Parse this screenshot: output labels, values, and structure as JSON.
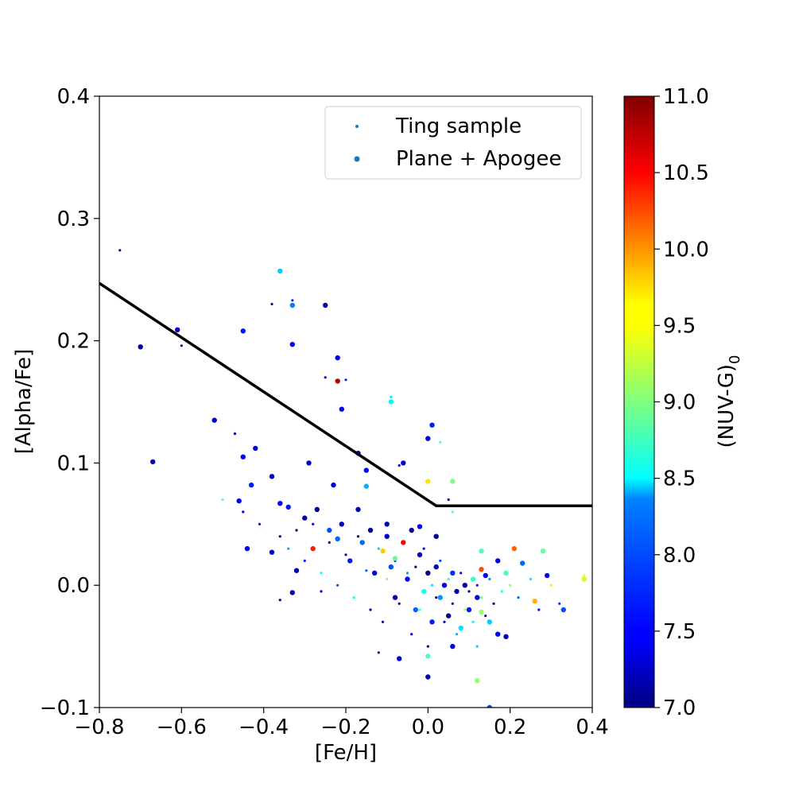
{
  "chart_data": {
    "type": "scatter",
    "xlabel": "[Fe/H]",
    "ylabel": "[Alpha/Fe]",
    "xlim": [
      -0.8,
      0.4
    ],
    "ylim": [
      -0.1,
      0.4
    ],
    "xticks": [
      "−0.8",
      "−0.6",
      "−0.4",
      "−0.2",
      "0.0",
      "0.2",
      "0.4"
    ],
    "xtick_values": [
      -0.8,
      -0.6,
      -0.4,
      -0.2,
      0.0,
      0.2,
      0.4
    ],
    "yticks": [
      "−0.1",
      "0.0",
      "0.1",
      "0.2",
      "0.3",
      "0.4"
    ],
    "ytick_values": [
      -0.1,
      0.0,
      0.1,
      0.2,
      0.3,
      0.4
    ],
    "grid": false,
    "legend": {
      "placement": "upper right",
      "entries": [
        {
          "label": "Ting sample",
          "marker": "small dot",
          "color": "#1f77b4"
        },
        {
          "label": "Plane + Apogee",
          "marker": "large dot",
          "color": "#1f77b4"
        }
      ]
    },
    "colorbar": {
      "label": "(NUV-G)",
      "label_subscript": "0",
      "range": [
        7.0,
        11.0
      ],
      "ticks": [
        "7.0",
        "7.5",
        "8.0",
        "8.5",
        "9.0",
        "9.5",
        "10.0",
        "10.5",
        "11.0"
      ],
      "tick_values": [
        7.0,
        7.5,
        8.0,
        8.5,
        9.0,
        9.5,
        10.0,
        10.5,
        11.0
      ],
      "colormap": "jet"
    },
    "dividing_line": {
      "points": [
        [
          -0.8,
          0.247
        ],
        [
          0.02,
          0.065
        ],
        [
          0.4,
          0.065
        ]
      ],
      "color": "#000000"
    },
    "series": [
      {
        "name": "Ting sample",
        "points": [
          [
            -0.75,
            0.274,
            7.2
          ],
          [
            -0.6,
            0.196,
            7.3
          ],
          [
            -0.47,
            0.124,
            7.1
          ],
          [
            -0.38,
            0.23,
            7.2
          ],
          [
            -0.33,
            0.233,
            7.6
          ],
          [
            -0.25,
            0.17,
            7.4
          ],
          [
            -0.2,
            0.168,
            7.6
          ],
          [
            -0.09,
            0.154,
            8.4
          ],
          [
            -0.07,
            0.098,
            7.2
          ],
          [
            0.03,
            0.117,
            8.8
          ],
          [
            0.05,
            0.07,
            7.4
          ],
          [
            -0.5,
            0.07,
            8.9
          ],
          [
            -0.45,
            0.06,
            7.3
          ],
          [
            -0.41,
            0.05,
            7.5
          ],
          [
            -0.36,
            0.04,
            7.1
          ],
          [
            -0.34,
            0.03,
            8.2
          ],
          [
            -0.32,
            0.045,
            7.0
          ],
          [
            -0.3,
            0.02,
            7.6
          ],
          [
            -0.28,
            0.05,
            7.3
          ],
          [
            -0.26,
            0.01,
            8.5
          ],
          [
            -0.24,
            0.035,
            7.1
          ],
          [
            -0.22,
            0.0,
            7.8
          ],
          [
            -0.2,
            0.025,
            7.2
          ],
          [
            -0.18,
            -0.01,
            8.6
          ],
          [
            -0.17,
            0.04,
            7.0
          ],
          [
            -0.15,
            0.012,
            7.9
          ],
          [
            -0.14,
            -0.02,
            7.2
          ],
          [
            -0.12,
            0.03,
            8.3
          ],
          [
            -0.11,
            -0.03,
            7.1
          ],
          [
            -0.1,
            0.005,
            9.1
          ],
          [
            -0.08,
            0.02,
            7.4
          ],
          [
            -0.07,
            -0.015,
            7.0
          ],
          [
            -0.05,
            0.01,
            8.1
          ],
          [
            -0.04,
            -0.04,
            7.3
          ],
          [
            -0.03,
            0.015,
            7.0
          ],
          [
            -0.02,
            -0.02,
            8.8
          ],
          [
            -0.01,
            0.03,
            7.5
          ],
          [
            0.0,
            -0.05,
            7.1
          ],
          [
            0.01,
            0.0,
            8.4
          ],
          [
            0.02,
            -0.01,
            7.0
          ],
          [
            0.03,
            0.02,
            7.8
          ],
          [
            0.04,
            -0.03,
            7.2
          ],
          [
            0.05,
            0.005,
            8.7
          ],
          [
            0.06,
            -0.015,
            7.0
          ],
          [
            0.07,
            -0.04,
            8.2
          ],
          [
            0.08,
            0.01,
            7.4
          ],
          [
            0.09,
            -0.02,
            9.2
          ],
          [
            0.1,
            -0.005,
            7.1
          ],
          [
            0.11,
            -0.03,
            8.5
          ],
          [
            0.12,
            0.0,
            7.6
          ],
          [
            0.13,
            -0.01,
            8.9
          ],
          [
            0.14,
            -0.025,
            7.3
          ],
          [
            0.15,
            0.005,
            8.1
          ],
          [
            0.16,
            -0.015,
            7.0
          ],
          [
            0.18,
            -0.005,
            8.6
          ],
          [
            0.2,
            0.0,
            9.0
          ],
          [
            0.22,
            -0.01,
            7.9
          ],
          [
            0.25,
            0.005,
            8.4
          ],
          [
            0.27,
            -0.02,
            7.5
          ],
          [
            0.3,
            0.0,
            9.3
          ],
          [
            0.32,
            -0.015,
            7.7
          ],
          [
            0.38,
            0.008,
            9.4
          ],
          [
            -0.12,
            -0.055,
            7.2
          ],
          [
            0.12,
            -0.05,
            8.3
          ],
          [
            -0.44,
            0.03,
            7.6
          ],
          [
            -0.36,
            -0.012,
            7.1
          ],
          [
            -0.26,
            -0.005,
            7.4
          ],
          [
            0.06,
            0.06,
            8.9
          ]
        ]
      },
      {
        "name": "Plane + Apogee",
        "points": [
          [
            -0.7,
            0.195,
            7.2
          ],
          [
            -0.61,
            0.209,
            7.3
          ],
          [
            -0.45,
            0.208,
            7.6
          ],
          [
            -0.36,
            0.257,
            8.3
          ],
          [
            -0.33,
            0.229,
            8.0
          ],
          [
            -0.33,
            0.197,
            7.4
          ],
          [
            -0.25,
            0.229,
            7.1
          ],
          [
            -0.22,
            0.186,
            7.4
          ],
          [
            -0.22,
            0.167,
            10.8
          ],
          [
            -0.21,
            0.144,
            7.5
          ],
          [
            -0.09,
            0.15,
            8.5
          ],
          [
            -0.17,
            0.108,
            7.3
          ],
          [
            -0.15,
            0.094,
            7.5
          ],
          [
            -0.15,
            0.081,
            8.2
          ],
          [
            -0.06,
            0.1,
            7.3
          ],
          [
            0.0,
            0.12,
            7.3
          ],
          [
            0.01,
            0.131,
            7.6
          ],
          [
            0.0,
            0.085,
            9.6
          ],
          [
            0.06,
            0.085,
            9.0
          ],
          [
            -0.52,
            0.135,
            7.3
          ],
          [
            -0.67,
            0.101,
            7.2
          ],
          [
            -0.46,
            0.069,
            7.4
          ],
          [
            -0.45,
            0.105,
            7.5
          ],
          [
            -0.43,
            0.082,
            7.6
          ],
          [
            -0.42,
            0.112,
            7.4
          ],
          [
            -0.38,
            0.089,
            7.3
          ],
          [
            -0.36,
            0.067,
            7.5
          ],
          [
            -0.29,
            0.1,
            7.2
          ],
          [
            -0.23,
            0.082,
            7.3
          ],
          [
            -0.34,
            0.064,
            7.6
          ],
          [
            -0.3,
            0.055,
            7.2
          ],
          [
            -0.28,
            0.03,
            10.4
          ],
          [
            -0.27,
            0.062,
            7.1
          ],
          [
            -0.24,
            0.045,
            7.8
          ],
          [
            -0.21,
            0.05,
            7.3
          ],
          [
            -0.19,
            0.02,
            7.6
          ],
          [
            -0.17,
            0.062,
            7.2
          ],
          [
            -0.16,
            0.035,
            7.9
          ],
          [
            -0.14,
            0.045,
            7.1
          ],
          [
            -0.13,
            0.01,
            7.4
          ],
          [
            -0.11,
            0.028,
            9.7
          ],
          [
            -0.1,
            0.04,
            7.3
          ],
          [
            -0.09,
            0.015,
            7.8
          ],
          [
            -0.08,
            -0.01,
            7.2
          ],
          [
            -0.06,
            0.035,
            10.5
          ],
          [
            -0.05,
            0.005,
            7.5
          ],
          [
            -0.04,
            0.045,
            7.1
          ],
          [
            -0.03,
            -0.02,
            7.9
          ],
          [
            -0.02,
            0.025,
            7.3
          ],
          [
            -0.01,
            -0.005,
            8.6
          ],
          [
            0.0,
            0.01,
            7.0
          ],
          [
            0.01,
            -0.03,
            7.6
          ],
          [
            0.02,
            0.015,
            7.2
          ],
          [
            0.03,
            -0.01,
            8.1
          ],
          [
            0.04,
            0.0,
            7.4
          ],
          [
            0.05,
            -0.025,
            7.0
          ],
          [
            0.06,
            0.01,
            7.7
          ],
          [
            0.07,
            -0.005,
            7.2
          ],
          [
            0.08,
            -0.035,
            8.4
          ],
          [
            0.09,
            0.0,
            7.1
          ],
          [
            0.1,
            -0.02,
            7.6
          ],
          [
            0.11,
            0.005,
            8.7
          ],
          [
            0.12,
            -0.01,
            7.3
          ],
          [
            0.13,
            -0.022,
            9.1
          ],
          [
            0.14,
            0.008,
            7.5
          ],
          [
            0.15,
            -0.03,
            8.3
          ],
          [
            0.17,
            0.02,
            7.4
          ],
          [
            0.19,
            0.01,
            8.8
          ],
          [
            0.21,
            0.03,
            10.1
          ],
          [
            0.23,
            0.018,
            7.9
          ],
          [
            0.26,
            -0.013,
            9.8
          ],
          [
            0.28,
            0.028,
            8.9
          ],
          [
            0.29,
            0.008,
            7.4
          ],
          [
            0.33,
            -0.02,
            7.8
          ],
          [
            0.38,
            0.005,
            9.3
          ],
          [
            0.13,
            0.013,
            10.2
          ],
          [
            0.13,
            0.028,
            8.8
          ],
          [
            -0.1,
            0.05,
            7.2
          ],
          [
            -0.07,
            -0.06,
            7.3
          ],
          [
            0.0,
            -0.075,
            7.2
          ],
          [
            0.0,
            -0.058,
            8.8
          ],
          [
            0.06,
            -0.05,
            7.4
          ],
          [
            0.12,
            -0.078,
            9.1
          ],
          [
            0.15,
            -0.1,
            7.8
          ],
          [
            -0.02,
            0.048,
            7.5
          ],
          [
            -0.08,
            0.022,
            8.9
          ],
          [
            0.02,
            0.04,
            7.1
          ],
          [
            -0.44,
            0.03,
            7.5
          ],
          [
            -0.38,
            0.027,
            7.3
          ],
          [
            -0.32,
            0.012,
            7.2
          ],
          [
            -0.33,
            -0.006,
            7.2
          ],
          [
            -0.22,
            0.038,
            7.9
          ],
          [
            0.17,
            -0.04,
            7.5
          ],
          [
            0.19,
            -0.042,
            7.2
          ]
        ]
      }
    ]
  }
}
